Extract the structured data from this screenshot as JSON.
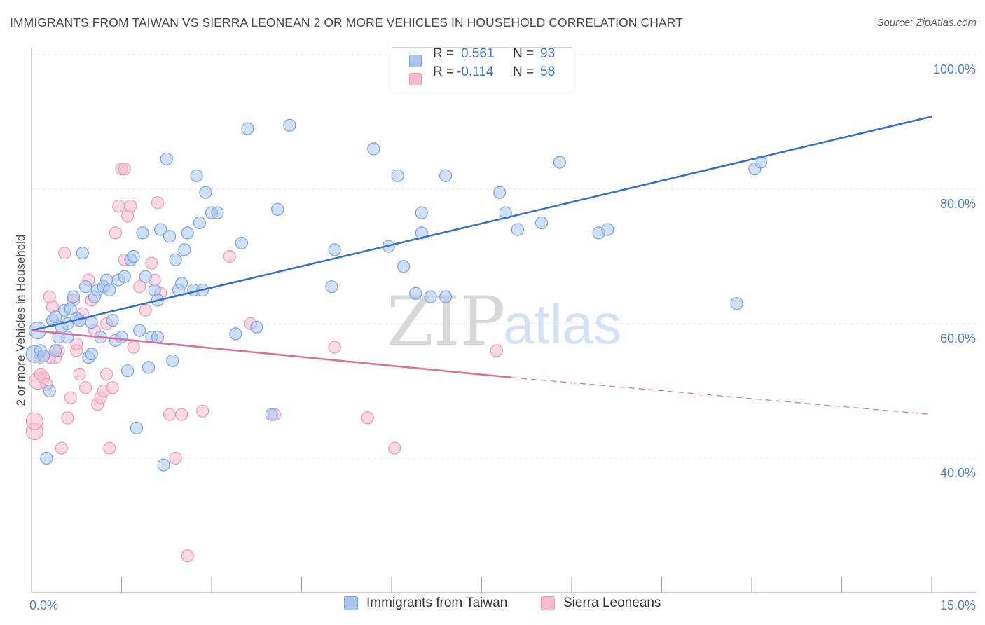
{
  "title": "IMMIGRANTS FROM TAIWAN VS SIERRA LEONEAN 2 OR MORE VEHICLES IN HOUSEHOLD CORRELATION CHART",
  "source": "Source: ZipAtlas.com",
  "watermark": {
    "part1": "ZIP",
    "part2": "atlas"
  },
  "legend": {
    "rows": [
      {
        "r_label": "R =",
        "r_value": "0.561",
        "n_label": "N =",
        "n_value": "93"
      },
      {
        "r_label": "R =",
        "r_value": "-0.114",
        "n_label": "N =",
        "n_value": "58"
      }
    ]
  },
  "colors": {
    "blue_fill": "#a9c6ef",
    "blue_stroke": "#7aa3de",
    "blue_line": "#2f6fce",
    "pink_fill": "#f7bcd0",
    "pink_stroke": "#ee9ab6",
    "pink_line": "#e06c98",
    "tick_text": "#4a7fd4",
    "grid": "#dfe3e8"
  },
  "chart_data": {
    "type": "scatter",
    "title": "IMMIGRANTS FROM TAIWAN VS SIERRA LEONEAN 2 OR MORE VEHICLES IN HOUSEHOLD CORRELATION CHART",
    "xlabel": "",
    "ylabel": "2 or more Vehicles in Household",
    "xlim": [
      0,
      15
    ],
    "ylim": [
      20,
      102
    ],
    "x_tick_labels": [
      "0.0%",
      "15.0%"
    ],
    "y_ticks": [
      40,
      60,
      80,
      100
    ],
    "y_tick_labels": [
      "40.0%",
      "60.0%",
      "80.0%",
      "100.0%"
    ],
    "grid": true,
    "legend_position": "top-center",
    "series": [
      {
        "name": "Immigrants from Taiwan",
        "color": "#a9c6ef",
        "trend": {
          "x": [
            0,
            15
          ],
          "y": [
            59.0,
            90.8
          ],
          "style": "solid"
        },
        "points": [
          [
            0.05,
            55.5
          ],
          [
            0.1,
            59.0
          ],
          [
            0.15,
            56.0
          ],
          [
            0.2,
            55.2
          ],
          [
            0.25,
            40.0
          ],
          [
            0.3,
            50.0
          ],
          [
            0.35,
            60.5
          ],
          [
            0.4,
            61.0
          ],
          [
            0.45,
            58.0
          ],
          [
            0.5,
            59.5
          ],
          [
            0.55,
            62.0
          ],
          [
            0.6,
            60.0
          ],
          [
            0.65,
            62.2
          ],
          [
            0.7,
            64.0
          ],
          [
            0.75,
            60.8
          ],
          [
            0.8,
            60.5
          ],
          [
            0.85,
            70.5
          ],
          [
            0.9,
            65.5
          ],
          [
            0.95,
            55.0
          ],
          [
            1.0,
            60.2
          ],
          [
            1.05,
            64.0
          ],
          [
            1.1,
            65.0
          ],
          [
            1.15,
            58.0
          ],
          [
            1.2,
            65.5
          ],
          [
            1.25,
            66.5
          ],
          [
            1.3,
            65.0
          ],
          [
            1.35,
            60.5
          ],
          [
            1.4,
            57.5
          ],
          [
            1.45,
            66.5
          ],
          [
            1.5,
            58.0
          ],
          [
            1.55,
            67.0
          ],
          [
            1.6,
            53.0
          ],
          [
            1.65,
            69.5
          ],
          [
            1.7,
            70.0
          ],
          [
            1.75,
            44.5
          ],
          [
            1.8,
            59.0
          ],
          [
            1.85,
            73.5
          ],
          [
            1.9,
            67.0
          ],
          [
            1.95,
            53.5
          ],
          [
            2.0,
            58.0
          ],
          [
            2.05,
            65.0
          ],
          [
            2.1,
            63.5
          ],
          [
            2.15,
            74.0
          ],
          [
            2.2,
            39.0
          ],
          [
            2.25,
            84.5
          ],
          [
            2.3,
            73.0
          ],
          [
            2.35,
            54.5
          ],
          [
            2.4,
            69.5
          ],
          [
            2.45,
            65.0
          ],
          [
            2.5,
            66.0
          ],
          [
            2.55,
            71.0
          ],
          [
            2.6,
            73.5
          ],
          [
            2.7,
            65.0
          ],
          [
            2.75,
            82.0
          ],
          [
            2.8,
            75.0
          ],
          [
            2.85,
            65.0
          ],
          [
            2.9,
            79.5
          ],
          [
            3.0,
            76.5
          ],
          [
            3.1,
            76.5
          ],
          [
            3.4,
            58.5
          ],
          [
            3.5,
            72.0
          ],
          [
            3.6,
            89.0
          ],
          [
            3.75,
            59.5
          ],
          [
            4.0,
            46.5
          ],
          [
            4.1,
            77.0
          ],
          [
            4.3,
            89.5
          ],
          [
            5.0,
            65.5
          ],
          [
            5.05,
            71.0
          ],
          [
            5.7,
            86.0
          ],
          [
            5.95,
            71.5
          ],
          [
            6.1,
            82.0
          ],
          [
            6.2,
            68.5
          ],
          [
            6.4,
            64.5
          ],
          [
            6.5,
            73.5
          ],
          [
            6.5,
            76.5
          ],
          [
            6.65,
            64.0
          ],
          [
            6.9,
            82.0
          ],
          [
            6.9,
            64.0
          ],
          [
            7.8,
            79.5
          ],
          [
            7.9,
            76.5
          ],
          [
            8.1,
            74.0
          ],
          [
            8.5,
            75.0
          ],
          [
            8.8,
            84.0
          ],
          [
            9.45,
            73.5
          ],
          [
            9.6,
            74.0
          ],
          [
            11.75,
            63.0
          ],
          [
            12.05,
            83.0
          ],
          [
            12.15,
            84.0
          ],
          [
            6.3,
            99.5
          ],
          [
            2.1,
            58.0
          ],
          [
            1.0,
            55.5
          ],
          [
            0.6,
            58.0
          ],
          [
            0.4,
            56.0
          ]
        ]
      },
      {
        "name": "Sierra Leoneans",
        "color": "#f7bcd0",
        "trend": {
          "x": [
            0,
            8.0,
            15
          ],
          "y": [
            59.0,
            52.0,
            46.5
          ],
          "style": "solid-then-dashed"
        },
        "points": [
          [
            0.05,
            44.0
          ],
          [
            0.05,
            45.5
          ],
          [
            0.1,
            51.5
          ],
          [
            0.15,
            55.0
          ],
          [
            0.2,
            52.0
          ],
          [
            0.25,
            51.0
          ],
          [
            0.3,
            64.0
          ],
          [
            0.35,
            62.5
          ],
          [
            0.4,
            55.0
          ],
          [
            0.45,
            56.0
          ],
          [
            0.5,
            41.5
          ],
          [
            0.55,
            70.5
          ],
          [
            0.6,
            46.0
          ],
          [
            0.65,
            49.0
          ],
          [
            0.7,
            63.5
          ],
          [
            0.75,
            56.0
          ],
          [
            0.8,
            52.5
          ],
          [
            0.85,
            61.5
          ],
          [
            0.9,
            50.5
          ],
          [
            0.95,
            66.5
          ],
          [
            1.0,
            63.5
          ],
          [
            1.05,
            59.0
          ],
          [
            1.1,
            48.0
          ],
          [
            1.15,
            49.0
          ],
          [
            1.2,
            50.0
          ],
          [
            1.25,
            52.5
          ],
          [
            1.3,
            41.5
          ],
          [
            1.35,
            50.5
          ],
          [
            1.4,
            73.5
          ],
          [
            1.45,
            77.5
          ],
          [
            1.5,
            83.0
          ],
          [
            1.55,
            69.5
          ],
          [
            1.6,
            76.0
          ],
          [
            1.65,
            77.5
          ],
          [
            1.7,
            56.5
          ],
          [
            1.8,
            65.5
          ],
          [
            1.9,
            62.0
          ],
          [
            2.0,
            69.0
          ],
          [
            2.05,
            66.5
          ],
          [
            2.1,
            78.0
          ],
          [
            2.3,
            46.5
          ],
          [
            2.4,
            40.0
          ],
          [
            2.5,
            46.5
          ],
          [
            2.6,
            25.5
          ],
          [
            2.85,
            47.0
          ],
          [
            3.3,
            70.0
          ],
          [
            3.65,
            60.0
          ],
          [
            4.05,
            46.5
          ],
          [
            5.05,
            56.5
          ],
          [
            5.6,
            46.0
          ],
          [
            6.05,
            41.5
          ],
          [
            7.75,
            56.0
          ],
          [
            1.55,
            83.0
          ],
          [
            0.3,
            55.0
          ],
          [
            0.75,
            57.0
          ],
          [
            1.25,
            60.0
          ],
          [
            2.15,
            64.5
          ],
          [
            0.15,
            52.5
          ]
        ]
      }
    ]
  },
  "bottom_legend": [
    "Immigrants from Taiwan",
    "Sierra Leoneans"
  ]
}
